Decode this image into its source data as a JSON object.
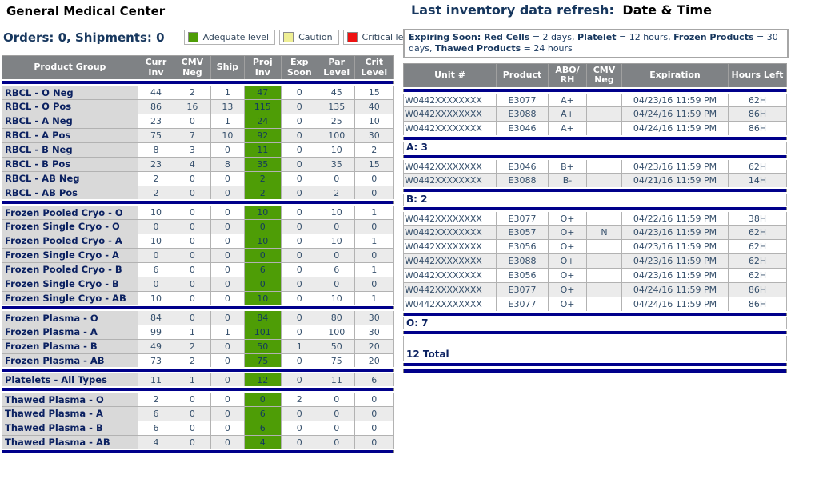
{
  "left": {
    "title": "General Medical Center",
    "orders_summary": "Orders: 0, Shipments: 0",
    "legend": [
      {
        "name": "adequate",
        "label": "Adequate level",
        "color": "#4E9D06"
      },
      {
        "name": "caution",
        "label": "Caution",
        "color": "#EFEF94"
      },
      {
        "name": "critical",
        "label": "Critical level",
        "color": "#EE1111"
      }
    ],
    "inventory_table": {
      "headers": [
        "Product Group",
        "Curr\nInv",
        "CMV\nNeg",
        "Ship",
        "Proj\nInv",
        "Exp\nSoon",
        "Par\nLevel",
        "Crit\nLevel"
      ],
      "sections": [
        {
          "name": "rbcl",
          "rows": [
            {
              "group": "RBCL - O Neg",
              "values": [
                44,
                2,
                1,
                47,
                0,
                45,
                15
              ],
              "proj_status": "adequate"
            },
            {
              "group": "RBCL - O Pos",
              "values": [
                86,
                16,
                13,
                115,
                0,
                135,
                40
              ],
              "proj_status": "adequate"
            },
            {
              "group": "RBCL - A Neg",
              "values": [
                23,
                0,
                1,
                24,
                0,
                25,
                10
              ],
              "proj_status": "adequate"
            },
            {
              "group": "RBCL - A Pos",
              "values": [
                75,
                7,
                10,
                92,
                0,
                100,
                30
              ],
              "proj_status": "adequate"
            },
            {
              "group": "RBCL - B Neg",
              "values": [
                8,
                3,
                0,
                11,
                0,
                10,
                2
              ],
              "proj_status": "adequate"
            },
            {
              "group": "RBCL - B Pos",
              "values": [
                23,
                4,
                8,
                35,
                0,
                35,
                15
              ],
              "proj_status": "adequate"
            },
            {
              "group": "RBCL - AB Neg",
              "values": [
                2,
                0,
                0,
                2,
                0,
                0,
                0
              ],
              "proj_status": "adequate"
            },
            {
              "group": "RBCL - AB Pos",
              "values": [
                2,
                0,
                0,
                2,
                0,
                2,
                0
              ],
              "proj_status": "adequate"
            }
          ]
        },
        {
          "name": "frozen-cryo",
          "rows": [
            {
              "group": "Frozen Pooled Cryo - O",
              "values": [
                10,
                0,
                0,
                10,
                0,
                10,
                1
              ],
              "proj_status": "adequate"
            },
            {
              "group": "Frozen Single Cryo - O",
              "values": [
                0,
                0,
                0,
                0,
                0,
                0,
                0
              ],
              "proj_status": "adequate"
            },
            {
              "group": "Frozen Pooled Cryo - A",
              "values": [
                10,
                0,
                0,
                10,
                0,
                10,
                1
              ],
              "proj_status": "adequate"
            },
            {
              "group": "Frozen Single Cryo - A",
              "values": [
                0,
                0,
                0,
                0,
                0,
                0,
                0
              ],
              "proj_status": "adequate"
            },
            {
              "group": "Frozen Pooled Cryo - B",
              "values": [
                6,
                0,
                0,
                6,
                0,
                6,
                1
              ],
              "proj_status": "adequate"
            },
            {
              "group": "Frozen Single Cryo - B",
              "values": [
                0,
                0,
                0,
                0,
                0,
                0,
                0
              ],
              "proj_status": "adequate"
            },
            {
              "group": "Frozen Single Cryo - AB",
              "values": [
                10,
                0,
                0,
                10,
                0,
                10,
                1
              ],
              "proj_status": "adequate"
            }
          ]
        },
        {
          "name": "frozen-plasma",
          "rows": [
            {
              "group": "Frozen Plasma - O",
              "values": [
                84,
                0,
                0,
                84,
                0,
                80,
                30
              ],
              "proj_status": "adequate"
            },
            {
              "group": "Frozen Plasma - A",
              "values": [
                99,
                1,
                1,
                101,
                0,
                100,
                30
              ],
              "proj_status": "adequate"
            },
            {
              "group": "Frozen Plasma - B",
              "values": [
                49,
                2,
                0,
                50,
                1,
                50,
                20
              ],
              "proj_status": "adequate"
            },
            {
              "group": "Frozen Plasma - AB",
              "values": [
                73,
                2,
                0,
                75,
                0,
                75,
                20
              ],
              "proj_status": "adequate"
            }
          ]
        },
        {
          "name": "platelets",
          "rows": [
            {
              "group": "Platelets - All Types",
              "values": [
                11,
                1,
                0,
                12,
                0,
                11,
                6
              ],
              "proj_status": "adequate"
            }
          ]
        },
        {
          "name": "thawed-plasma",
          "rows": [
            {
              "group": "Thawed Plasma - O",
              "values": [
                2,
                0,
                0,
                0,
                2,
                0,
                0
              ],
              "proj_status": "adequate"
            },
            {
              "group": "Thawed Plasma - A",
              "values": [
                6,
                0,
                0,
                6,
                0,
                0,
                0
              ],
              "proj_status": "adequate"
            },
            {
              "group": "Thawed Plasma - B",
              "values": [
                6,
                0,
                0,
                6,
                0,
                0,
                0
              ],
              "proj_status": "adequate"
            },
            {
              "group": "Thawed Plasma - AB",
              "values": [
                4,
                0,
                0,
                4,
                0,
                0,
                0
              ],
              "proj_status": "adequate"
            }
          ]
        }
      ]
    }
  },
  "right": {
    "title_label": "Last inventory data refresh:",
    "title_value": "Date & Time",
    "expiring_note": [
      {
        "text": "Expiring Soon: Red Cells",
        "bold": true
      },
      {
        "text": " = 2 days, ",
        "bold": false
      },
      {
        "text": "Platelet",
        "bold": true
      },
      {
        "text": " = 12 hours, ",
        "bold": false
      },
      {
        "text": "Frozen Products",
        "bold": true
      },
      {
        "text": " = 30 days, ",
        "bold": false
      },
      {
        "text": "Thawed Products",
        "bold": true
      },
      {
        "text": " = 24 hours",
        "bold": false
      }
    ],
    "units_table": {
      "headers": [
        "Unit #",
        "Product",
        "ABO/\nRH",
        "CMV\nNeg",
        "Expiration",
        "Hours Left"
      ],
      "groups": [
        {
          "summary": "A: 3",
          "rows": [
            {
              "values": [
                "W0442XXXXXXXX",
                "E3077",
                "A+",
                "",
                "04/23/16 11:59 PM",
                "62H"
              ]
            },
            {
              "values": [
                "W0442XXXXXXXX",
                "E3088",
                "A+",
                "",
                "04/24/16 11:59 PM",
                "86H"
              ]
            },
            {
              "values": [
                "W0442XXXXXXXX",
                "E3046",
                "A+",
                "",
                "04/24/16 11:59 PM",
                "86H"
              ]
            }
          ]
        },
        {
          "summary": "B: 2",
          "rows": [
            {
              "values": [
                "W0442XXXXXXXX",
                "E3046",
                "B+",
                "",
                "04/23/16 11:59 PM",
                "62H"
              ]
            },
            {
              "values": [
                "W0442XXXXXXXX",
                "E3088",
                "B-",
                "",
                "04/21/16 11:59 PM",
                "14H"
              ]
            }
          ]
        },
        {
          "summary": "O: 7",
          "rows": [
            {
              "values": [
                "W0442XXXXXXXX",
                "E3077",
                "O+",
                "",
                "04/22/16 11:59 PM",
                "38H"
              ]
            },
            {
              "values": [
                "W0442XXXXXXXX",
                "E3057",
                "O+",
                "N",
                "04/23/16 11:59 PM",
                "62H"
              ]
            },
            {
              "values": [
                "W0442XXXXXXXX",
                "E3056",
                "O+",
                "",
                "04/23/16 11:59 PM",
                "62H"
              ]
            },
            {
              "values": [
                "W0442XXXXXXXX",
                "E3088",
                "O+",
                "",
                "04/23/16 11:59 PM",
                "62H"
              ]
            },
            {
              "values": [
                "W0442XXXXXXXX",
                "E3056",
                "O+",
                "",
                "04/23/16 11:59 PM",
                "62H"
              ]
            },
            {
              "values": [
                "W0442XXXXXXXX",
                "E3077",
                "O+",
                "",
                "04/24/16 11:59 PM",
                "86H"
              ]
            },
            {
              "values": [
                "W0442XXXXXXXX",
                "E3077",
                "O+",
                "",
                "04/24/16 11:59 PM",
                "86H"
              ]
            }
          ]
        }
      ],
      "total": "12 Total"
    }
  }
}
